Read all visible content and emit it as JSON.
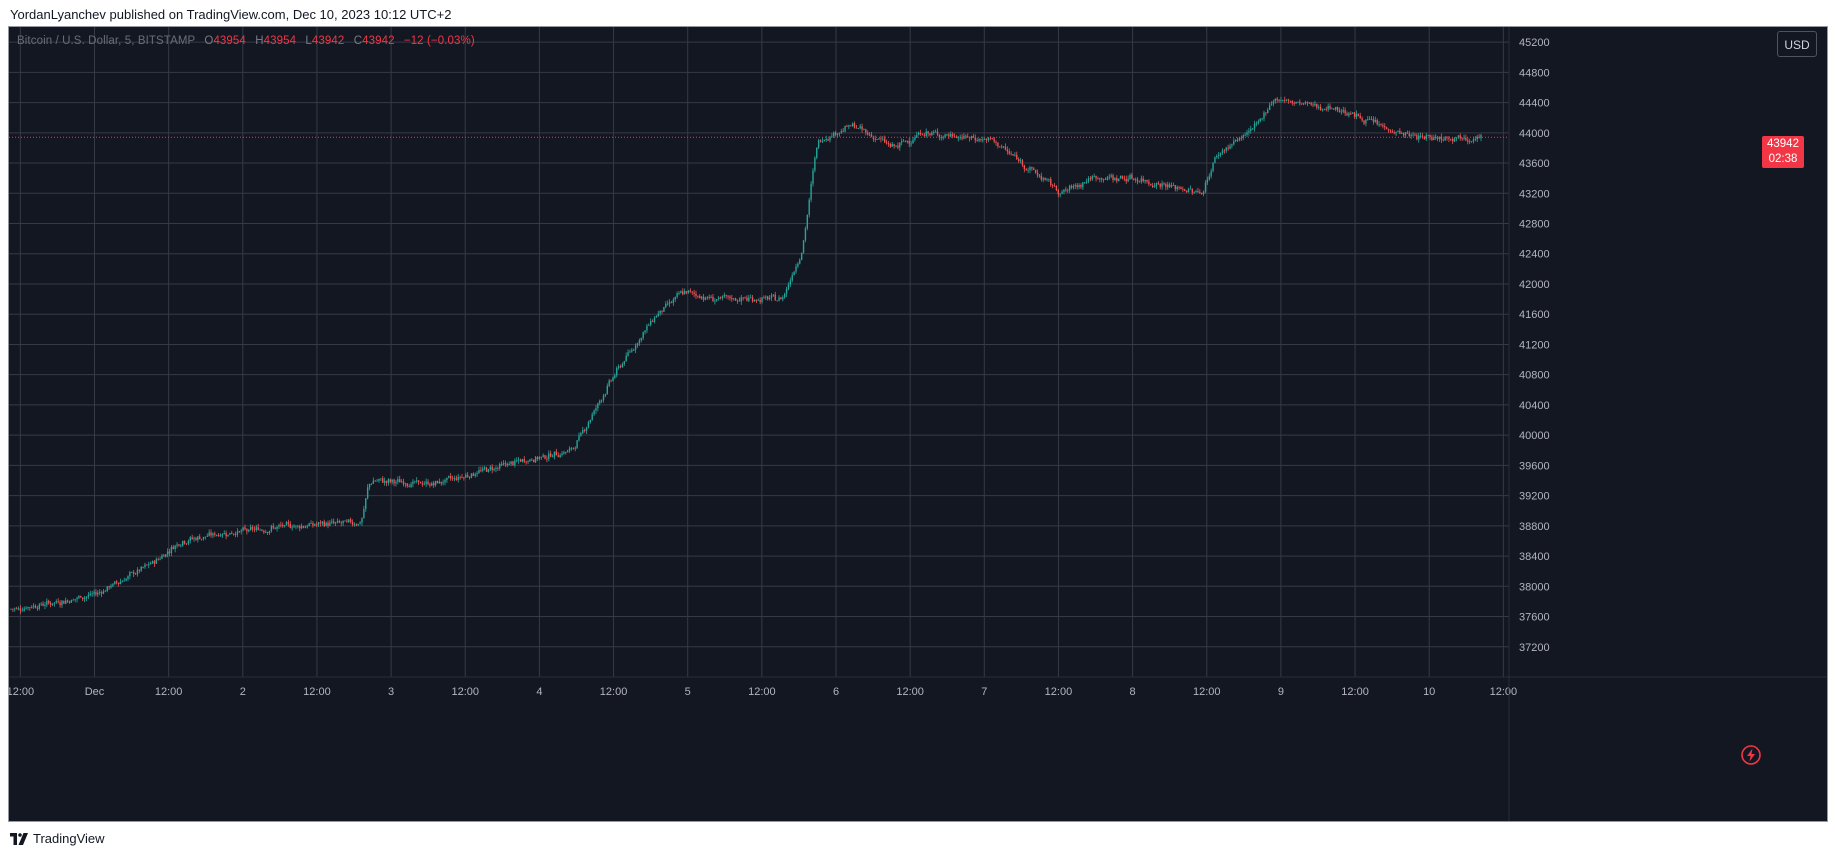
{
  "header": {
    "caption": "YordanLyanchev published on TradingView.com, Dec 10, 2023 10:12 UTC+2"
  },
  "legend": {
    "symbol": "Bitcoin / U.S. Dollar, 5, BITSTAMP",
    "o_label": "O",
    "o_value": "43954",
    "h_label": "H",
    "h_value": "43954",
    "l_label": "L",
    "l_value": "43942",
    "c_label": "C",
    "c_value": "43942",
    "change": "−12 (−0.03%)"
  },
  "toolbar": {
    "currency": "USD"
  },
  "last_price": {
    "price": "43942",
    "countdown": "02:38"
  },
  "footer": {
    "brand": "TradingView"
  },
  "colors": {
    "up": "#26a69a",
    "down": "#ef5350",
    "grid": "#363a45",
    "background": "#131722",
    "last_price": "#f23645"
  },
  "icons": {
    "lightning": "lightning-icon",
    "logo": "tradingview-logo-icon"
  },
  "chart_data": {
    "type": "candlestick",
    "symbol": "BTCUSD",
    "interval": "5",
    "x_axis": {
      "ticks": [
        "12:00",
        "Dec",
        "12:00",
        "2",
        "12:00",
        "3",
        "12:00",
        "4",
        "12:00",
        "5",
        "12:00",
        "6",
        "12:00",
        "7",
        "12:00",
        "8",
        "12:00",
        "9",
        "12:00",
        "10",
        "12:00"
      ]
    },
    "y_axis": {
      "ticks": [
        37200,
        37600,
        38000,
        38400,
        38800,
        39200,
        39600,
        40000,
        40400,
        40800,
        41200,
        41600,
        42000,
        42400,
        42800,
        43200,
        43600,
        44000,
        44400,
        44800,
        45200
      ],
      "range": [
        36800,
        45400
      ],
      "position": "right"
    },
    "grid": true,
    "last_price_line": 43942,
    "series_path": [
      [
        0.0,
        37700
      ],
      [
        0.35,
        37800
      ],
      [
        0.6,
        37900
      ],
      [
        1.0,
        38300
      ],
      [
        1.2,
        38600
      ],
      [
        1.5,
        38700
      ],
      [
        2.0,
        38800
      ],
      [
        2.5,
        38850
      ],
      [
        2.55,
        39400
      ],
      [
        3.0,
        39350
      ],
      [
        3.5,
        39600
      ],
      [
        4.0,
        39800
      ],
      [
        4.3,
        40800
      ],
      [
        4.6,
        41600
      ],
      [
        4.8,
        41900
      ],
      [
        5.0,
        41800
      ],
      [
        5.5,
        41800
      ],
      [
        5.65,
        42500
      ],
      [
        5.75,
        43900
      ],
      [
        6.0,
        44100
      ],
      [
        6.3,
        43800
      ],
      [
        6.5,
        44000
      ],
      [
        7.0,
        43900
      ],
      [
        7.5,
        43200
      ],
      [
        7.7,
        43400
      ],
      [
        8.0,
        43400
      ],
      [
        8.5,
        43200
      ],
      [
        8.6,
        43700
      ],
      [
        8.9,
        44100
      ],
      [
        9.0,
        44450
      ],
      [
        9.5,
        44300
      ],
      [
        9.9,
        44000
      ],
      [
        10.0,
        43950
      ],
      [
        10.5,
        43942
      ]
    ]
  }
}
